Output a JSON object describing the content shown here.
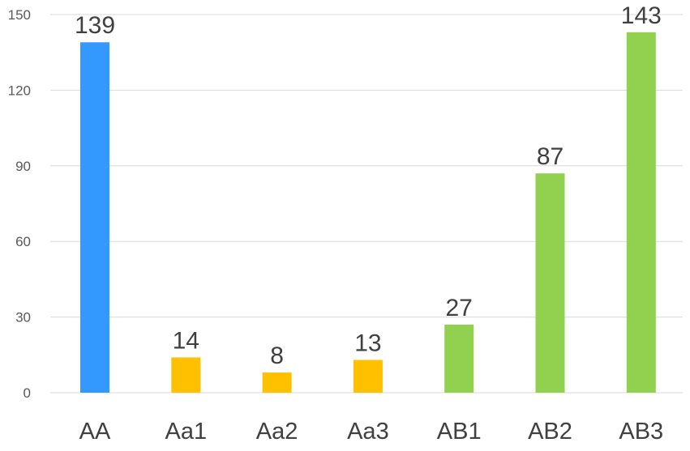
{
  "chart_data": {
    "type": "bar",
    "categories": [
      "AA",
      "Aa1",
      "Aa2",
      "Aa3",
      "AB1",
      "AB2",
      "AB3"
    ],
    "values": [
      139,
      14,
      8,
      13,
      27,
      87,
      143
    ],
    "bar_colors": [
      "#3399ff",
      "#ffc000",
      "#ffc000",
      "#ffc000",
      "#92d050",
      "#92d050",
      "#92d050"
    ],
    "ylim": [
      0,
      150
    ],
    "yticks": [
      0,
      30,
      60,
      90,
      120,
      150
    ],
    "grid": true,
    "legend": "none",
    "data_labels": true
  }
}
